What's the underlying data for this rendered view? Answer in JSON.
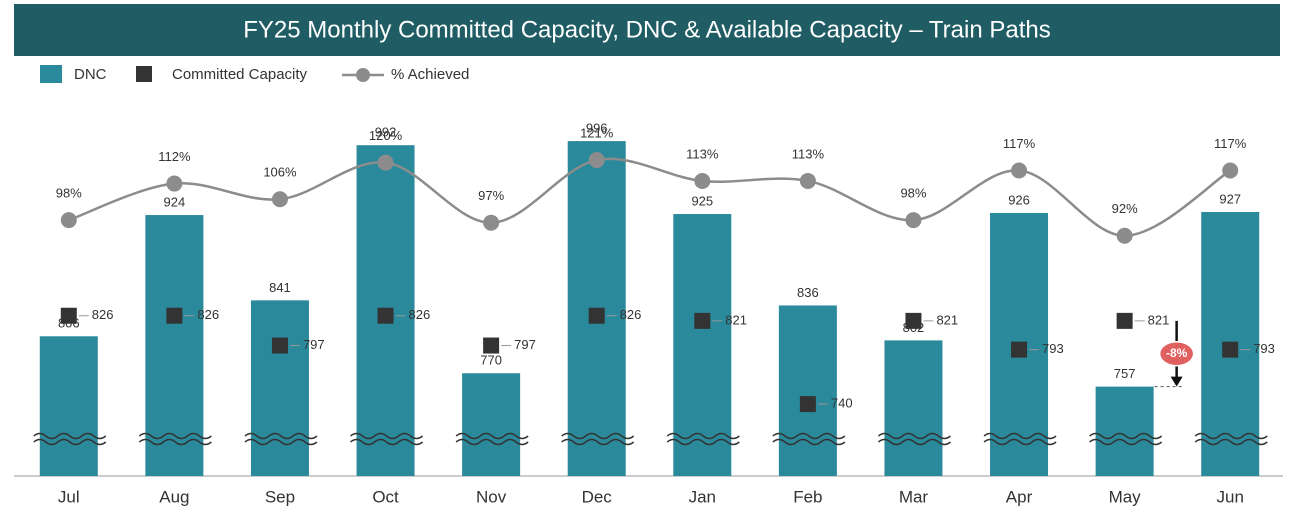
{
  "chart_data": {
    "type": "bar",
    "title": "FY25 Monthly Committed Capacity, DNC & Available Capacity – Train Paths",
    "categories": [
      "Jul",
      "Aug",
      "Sep",
      "Oct",
      "Nov",
      "Dec",
      "Jan",
      "Feb",
      "Mar",
      "Apr",
      "May",
      "Jun"
    ],
    "series": [
      {
        "name": "DNC",
        "color": "#2a8a9b",
        "values": [
          806,
          924,
          841,
          992,
          770,
          996,
          925,
          836,
          802,
          926,
          757,
          927
        ]
      },
      {
        "name": "Committed Capacity",
        "color": "#333333",
        "values": [
          826,
          826,
          797,
          826,
          797,
          826,
          821,
          740,
          821,
          793,
          821,
          793
        ]
      },
      {
        "name": "% Achieved",
        "color": "#8c8c8c",
        "axis": "y2",
        "values": [
          98,
          112,
          106,
          120,
          97,
          121,
          113,
          113,
          98,
          117,
          92,
          117
        ],
        "value_labels": [
          "98%",
          "112%",
          "106%",
          "120%",
          "97%",
          "121%",
          "113%",
          "113%",
          "98%",
          "117%",
          "92%",
          "117%"
        ]
      }
    ],
    "ylim": [
      670,
      1036
    ],
    "y2lim": [
      0,
      144
    ],
    "annotation": "-8%"
  }
}
